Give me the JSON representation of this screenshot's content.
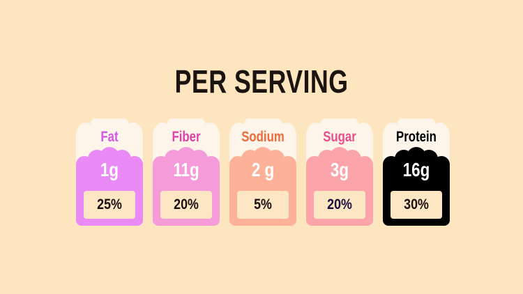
{
  "title": "PER SERVING",
  "cards": [
    {
      "label": "Fat",
      "amount": "1g",
      "percent": "25%"
    },
    {
      "label": "Fiber",
      "amount": "11g",
      "percent": "20%"
    },
    {
      "label": "Sodium",
      "amount": "2 g",
      "percent": "5%"
    },
    {
      "label": "Sugar",
      "amount": "3g",
      "percent": "20%"
    },
    {
      "label": "Protein",
      "amount": "16g",
      "percent": "30%"
    }
  ]
}
